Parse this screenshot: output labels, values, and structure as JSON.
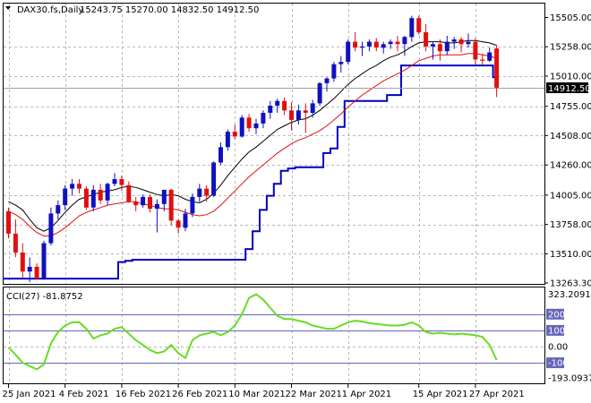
{
  "chart_data": [
    {
      "type": "candlestick",
      "title": "DAX30.fs,Daily",
      "ohlc_label": "15243.75 15270.00 14832.50 14912.50",
      "current_price": 14912.5,
      "current_price_label": "14912.50",
      "y_ticks": [
        15505,
        15258,
        15010,
        14755,
        14508,
        14260,
        14005,
        13758,
        13510,
        13263.3
      ],
      "y_tick_labels": [
        "15505.00",
        "15258.00",
        "15010.00",
        "14755.00",
        "14508.00",
        "14260.00",
        "14005.00",
        "13758.00",
        "13510.00",
        "13263.30"
      ],
      "ylim": [
        13263.3,
        15597
      ],
      "grid": true,
      "x_labels": [
        "25 Jan 2021",
        "4 Feb 2021",
        "16 Feb 2021",
        "26 Feb 2021",
        "10 Mar 2021",
        "22 Mar 2021",
        "1 Apr 2021",
        "15 Apr 2021",
        "27 Apr 2021"
      ],
      "x_label_bars": [
        0,
        8,
        16,
        24,
        32,
        40,
        48,
        58,
        66
      ],
      "colors": {
        "up": "#1010c0",
        "down": "#e01010",
        "fast_ma": "#000000",
        "slow_ma": "#e01010",
        "stop": "#0000c0"
      },
      "candles": [
        [
          13870,
          13900,
          13640,
          13680
        ],
        [
          13680,
          13800,
          13480,
          13520
        ],
        [
          13520,
          13600,
          13300,
          13360
        ],
        [
          13360,
          13480,
          13270,
          13400
        ],
        [
          13400,
          13430,
          13290,
          13300
        ],
        [
          13300,
          13620,
          13290,
          13600
        ],
        [
          13600,
          13900,
          13580,
          13850
        ],
        [
          13850,
          13960,
          13800,
          13920
        ],
        [
          13920,
          14090,
          13880,
          14060
        ],
        [
          14060,
          14140,
          14000,
          14100
        ],
        [
          14100,
          14140,
          14020,
          14060
        ],
        [
          14060,
          14080,
          13880,
          13900
        ],
        [
          13900,
          14090,
          13870,
          14050
        ],
        [
          14050,
          14100,
          13930,
          13960
        ],
        [
          13960,
          14110,
          13920,
          14100
        ],
        [
          14100,
          14190,
          14080,
          14140
        ],
        [
          14140,
          14170,
          14040,
          14090
        ],
        [
          14090,
          14120,
          13940,
          13950
        ],
        [
          13950,
          13990,
          13870,
          13920
        ],
        [
          13920,
          14010,
          13900,
          13990
        ],
        [
          13990,
          14010,
          13860,
          13890
        ],
        [
          13890,
          13970,
          13690,
          13930
        ],
        [
          13930,
          14050,
          13870,
          14050
        ],
        [
          14050,
          14060,
          13750,
          13790
        ],
        [
          13790,
          13800,
          13680,
          13730
        ],
        [
          13730,
          13890,
          13700,
          13850
        ],
        [
          13850,
          14020,
          13820,
          13990
        ],
        [
          13990,
          14100,
          13950,
          14060
        ],
        [
          14060,
          14090,
          13950,
          14000
        ],
        [
          14000,
          14290,
          13990,
          14280
        ],
        [
          14280,
          14450,
          14260,
          14410
        ],
        [
          14410,
          14560,
          14380,
          14540
        ],
        [
          14540,
          14600,
          14480,
          14500
        ],
        [
          14500,
          14680,
          14490,
          14660
        ],
        [
          14660,
          14690,
          14540,
          14570
        ],
        [
          14570,
          14650,
          14520,
          14610
        ],
        [
          14610,
          14720,
          14570,
          14700
        ],
        [
          14700,
          14800,
          14650,
          14760
        ],
        [
          14760,
          14820,
          14700,
          14800
        ],
        [
          14800,
          14830,
          14680,
          14720
        ],
        [
          14720,
          14790,
          14550,
          14640
        ],
        [
          14640,
          14770,
          14600,
          14720
        ],
        [
          14720,
          14780,
          14530,
          14700
        ],
        [
          14700,
          14810,
          14660,
          14780
        ],
        [
          14780,
          14960,
          14760,
          14950
        ],
        [
          14950,
          15000,
          14880,
          14990
        ],
        [
          14990,
          15130,
          14960,
          15110
        ],
        [
          15110,
          15180,
          15040,
          15130
        ],
        [
          15130,
          15320,
          15110,
          15300
        ],
        [
          15300,
          15380,
          15220,
          15250
        ],
        [
          15250,
          15300,
          15180,
          15260
        ],
        [
          15260,
          15320,
          15220,
          15300
        ],
        [
          15300,
          15330,
          15220,
          15250
        ],
        [
          15250,
          15300,
          15200,
          15280
        ],
        [
          15280,
          15320,
          15240,
          15300
        ],
        [
          15300,
          15350,
          15220,
          15280
        ],
        [
          15280,
          15350,
          15180,
          15340
        ],
        [
          15340,
          15520,
          15300,
          15500
        ],
        [
          15500,
          15520,
          15360,
          15380
        ],
        [
          15380,
          15450,
          15220,
          15260
        ],
        [
          15260,
          15300,
          15150,
          15280
        ],
        [
          15280,
          15320,
          15140,
          15220
        ],
        [
          15220,
          15350,
          15190,
          15300
        ],
        [
          15300,
          15340,
          15240,
          15320
        ],
        [
          15320,
          15340,
          15210,
          15280
        ],
        [
          15280,
          15370,
          15250,
          15300
        ],
        [
          15300,
          15330,
          15110,
          15150
        ],
        [
          15150,
          15200,
          15100,
          15140
        ],
        [
          15140,
          15250,
          15130,
          15210
        ],
        [
          15243.75,
          15270,
          14832.5,
          14912.5
        ]
      ],
      "fast_ma": [
        13950,
        13920,
        13880,
        13800,
        13730,
        13700,
        13730,
        13790,
        13860,
        13920,
        13970,
        13990,
        14010,
        14030,
        14040,
        14050,
        14070,
        14080,
        14070,
        14050,
        14030,
        14010,
        14000,
        14010,
        14000,
        13970,
        13950,
        13940,
        13970,
        14020,
        14090,
        14170,
        14240,
        14310,
        14370,
        14410,
        14460,
        14510,
        14560,
        14590,
        14620,
        14640,
        14650,
        14680,
        14720,
        14770,
        14820,
        14880,
        14940,
        14990,
        15030,
        15070,
        15100,
        15140,
        15170,
        15190,
        15220,
        15260,
        15290,
        15300,
        15300,
        15300,
        15290,
        15290,
        15300,
        15310,
        15310,
        15300,
        15290,
        15270
      ],
      "slow_ma": [
        13870,
        13840,
        13800,
        13740,
        13690,
        13660,
        13660,
        13690,
        13730,
        13780,
        13830,
        13860,
        13880,
        13900,
        13920,
        13930,
        13940,
        13950,
        13950,
        13930,
        13920,
        13900,
        13890,
        13890,
        13880,
        13860,
        13840,
        13830,
        13840,
        13870,
        13920,
        13980,
        14040,
        14100,
        14160,
        14210,
        14260,
        14310,
        14360,
        14400,
        14440,
        14470,
        14490,
        14520,
        14550,
        14590,
        14640,
        14690,
        14750,
        14800,
        14850,
        14890,
        14930,
        14970,
        15000,
        15030,
        15060,
        15100,
        15140,
        15160,
        15180,
        15190,
        15190,
        15190,
        15190,
        15200,
        15200,
        15190,
        15180,
        15160
      ],
      "stop_line": [
        13300,
        13300,
        13300,
        13300,
        13300,
        13300,
        13300,
        13300,
        13300,
        13300,
        13300,
        13300,
        13300,
        13300,
        13300,
        13300,
        13440,
        13450,
        13460,
        13460,
        13460,
        13460,
        13460,
        13460,
        13460,
        13460,
        13460,
        13460,
        13460,
        13460,
        13460,
        13460,
        13460,
        13460,
        13550,
        13700,
        13880,
        14000,
        14100,
        14210,
        14230,
        14240,
        14240,
        14240,
        14240,
        14360,
        14400,
        14580,
        14800,
        14800,
        14800,
        14800,
        14800,
        14800,
        14850,
        14850,
        15100,
        15100,
        15100,
        15100,
        15100,
        15100,
        15100,
        15100,
        15100,
        15100,
        15100,
        15100,
        15100,
        15000
      ]
    },
    {
      "type": "line",
      "title": "CCI(27) -81.8752",
      "ylim": [
        -193.0937,
        323.2091
      ],
      "y_ticks": [
        323.2091,
        200,
        100,
        0,
        -100,
        -193.0937
      ],
      "y_tick_labels": [
        "323.2091",
        "200",
        "100",
        "0.00",
        "-100",
        "-193.0937"
      ],
      "levels": [
        200,
        100,
        -100
      ],
      "colors": {
        "line": "#66dd22",
        "level": "#6666bb"
      },
      "values": [
        -5,
        -50,
        -100,
        -120,
        -140,
        -110,
        20,
        90,
        130,
        150,
        150,
        110,
        50,
        70,
        80,
        110,
        120,
        80,
        40,
        10,
        -20,
        -40,
        -30,
        10,
        -40,
        -70,
        40,
        70,
        80,
        90,
        70,
        90,
        130,
        200,
        300,
        323.2,
        290,
        240,
        190,
        170,
        170,
        160,
        150,
        130,
        120,
        110,
        110,
        130,
        150,
        160,
        155,
        145,
        140,
        135,
        130,
        130,
        135,
        150,
        130,
        90,
        80,
        85,
        80,
        75,
        80,
        75,
        70,
        60,
        10,
        -81.9
      ]
    }
  ]
}
